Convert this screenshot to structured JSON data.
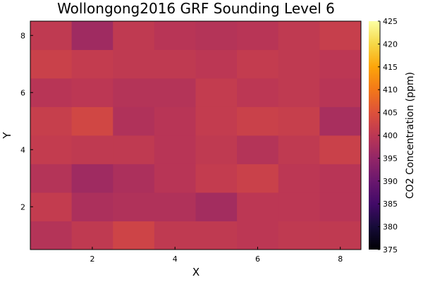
{
  "chart_data": {
    "type": "heatmap",
    "title": "Wollongong2016 GRF Sounding Level 6",
    "xlabel": "X",
    "ylabel": "Y",
    "colorbar_label": "CO2 Concentration (ppm)",
    "colormap": "inferno",
    "x": [
      1,
      2,
      3,
      4,
      5,
      6,
      7,
      8
    ],
    "y": [
      1,
      2,
      3,
      4,
      5,
      6,
      7,
      8
    ],
    "xlim": [
      0.5,
      8.5
    ],
    "ylim": [
      0.5,
      8.5
    ],
    "xticks": [
      2,
      4,
      6,
      8
    ],
    "yticks": [
      2,
      4,
      6,
      8
    ],
    "clim": [
      375,
      425
    ],
    "cticks": [
      375,
      380,
      385,
      390,
      395,
      400,
      405,
      410,
      415,
      420,
      425
    ],
    "z": [
      [
        399.0,
        400.5,
        402.5,
        400.5,
        400.5,
        400.0,
        400.5,
        400.5
      ],
      [
        401.0,
        398.0,
        398.5,
        398.5,
        397.0,
        400.0,
        400.0,
        399.5
      ],
      [
        399.0,
        396.5,
        398.0,
        399.5,
        401.0,
        402.0,
        400.0,
        399.5
      ],
      [
        401.0,
        400.5,
        400.5,
        399.5,
        400.5,
        399.0,
        400.5,
        402.0
      ],
      [
        401.5,
        403.0,
        398.5,
        399.5,
        401.0,
        402.0,
        401.5,
        397.5
      ],
      [
        399.5,
        400.0,
        399.0,
        399.0,
        401.0,
        400.0,
        400.5,
        399.5
      ],
      [
        402.0,
        401.0,
        400.5,
        400.5,
        400.0,
        401.0,
        400.5,
        400.0
      ],
      [
        400.5,
        396.5,
        400.5,
        399.5,
        399.0,
        399.5,
        400.5,
        401.5
      ]
    ]
  }
}
